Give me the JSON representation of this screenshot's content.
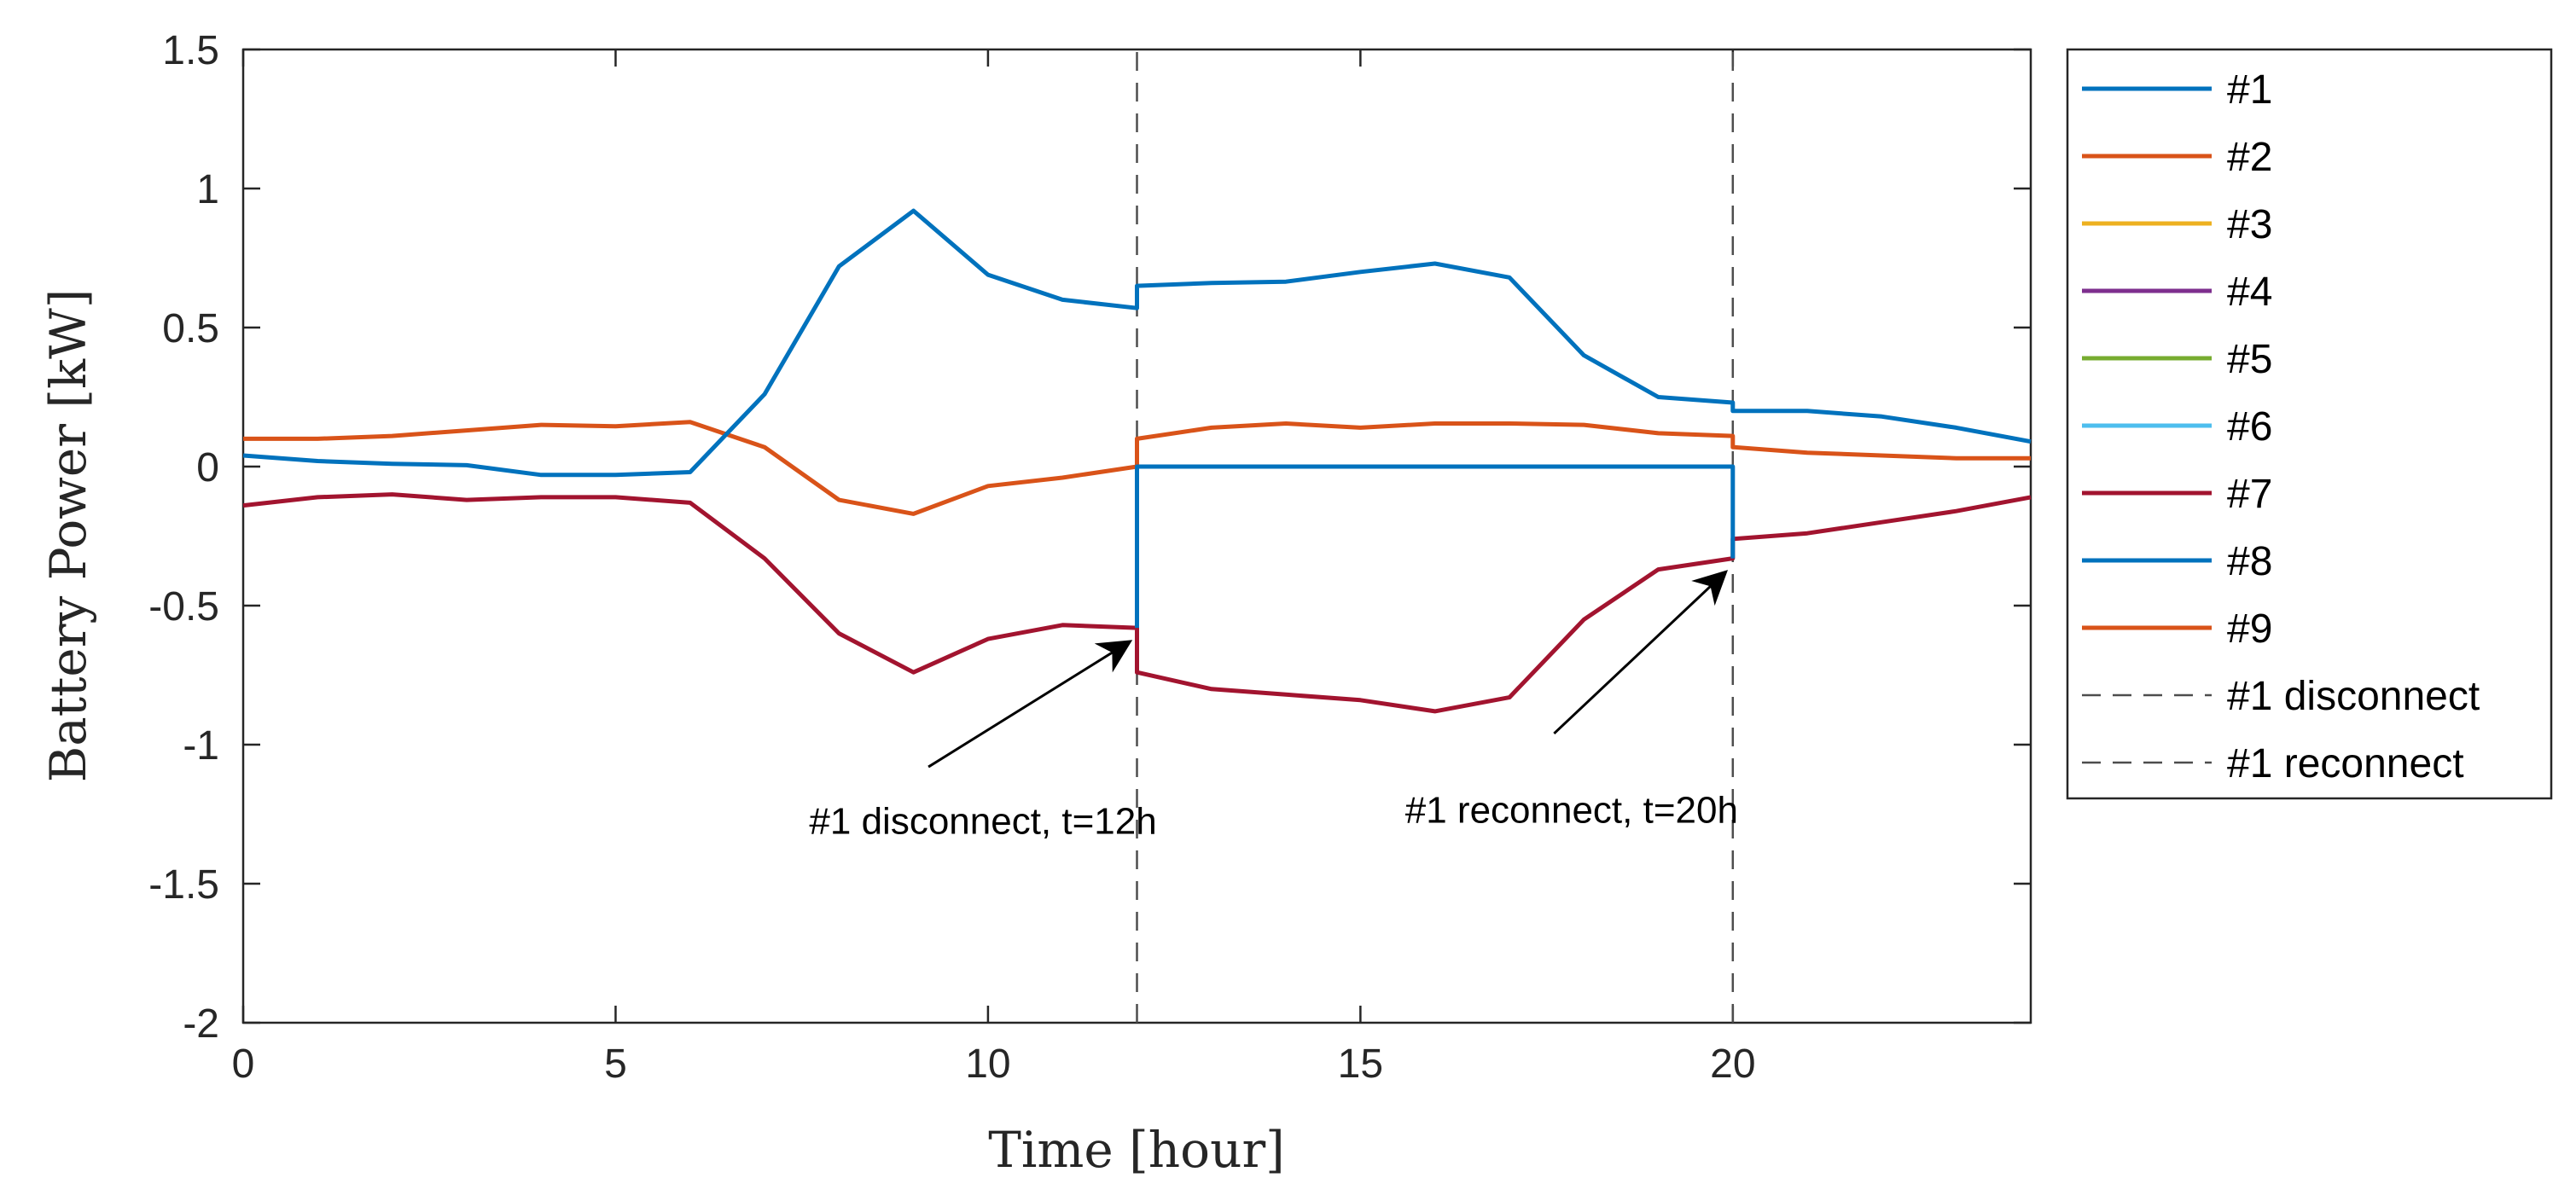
{
  "chart_data": {
    "type": "line",
    "title": "",
    "xlabel": "Time [hour]",
    "ylabel": "Battery Power [kW]",
    "xlim": [
      0,
      24
    ],
    "ylim": [
      -2,
      1.5
    ],
    "xticks": [
      0,
      5,
      10,
      15,
      20
    ],
    "yticks": [
      1.5,
      1,
      0.5,
      0,
      -0.5,
      -1,
      -1.5,
      -2
    ],
    "xtick_labels": [
      "0",
      "5",
      "10",
      "15",
      "20"
    ],
    "ytick_labels": [
      "1.5",
      "1",
      "0.5",
      "0",
      "-0.5",
      "-1",
      "-1.5",
      "-2"
    ],
    "grid": false,
    "legend_position": "outside-right",
    "series": [
      {
        "name": "#1",
        "color": "#0072BD",
        "style": "solid",
        "x": [
          0,
          1,
          2,
          3,
          4,
          5,
          6,
          7,
          8,
          9,
          10,
          11,
          12,
          12,
          13,
          14,
          15,
          16,
          17,
          18,
          19,
          20,
          20,
          21,
          22,
          23,
          24
        ],
        "y": [
          0.04,
          0.02,
          0.01,
          0.005,
          -0.03,
          -0.03,
          -0.02,
          0.26,
          0.72,
          0.92,
          0.69,
          0.6,
          0.57,
          0.65,
          0.66,
          0.665,
          0.7,
          0.73,
          0.68,
          0.4,
          0.25,
          0.23,
          0.2,
          0.2,
          0.18,
          0.14,
          0.09
        ]
      },
      {
        "name": "#2",
        "color": "#D95319",
        "style": "solid",
        "x": [
          0,
          1,
          2,
          3,
          4,
          5,
          6,
          7,
          8,
          9,
          10,
          11,
          12,
          12,
          13,
          14,
          15,
          16,
          17,
          18,
          19,
          20,
          20,
          21,
          22,
          23,
          24
        ],
        "y": [
          0.1,
          0.1,
          0.11,
          0.13,
          0.15,
          0.145,
          0.16,
          0.07,
          -0.12,
          -0.17,
          -0.07,
          -0.04,
          0.0,
          0.1,
          0.14,
          0.155,
          0.14,
          0.155,
          0.155,
          0.15,
          0.12,
          0.11,
          0.07,
          0.05,
          0.04,
          0.03,
          0.03
        ]
      },
      {
        "name": "#3",
        "color": "#EDB120",
        "style": "solid",
        "x": [],
        "y": []
      },
      {
        "name": "#4",
        "color": "#7E2F8E",
        "style": "solid",
        "x": [],
        "y": []
      },
      {
        "name": "#5",
        "color": "#77AC30",
        "style": "solid",
        "x": [],
        "y": []
      },
      {
        "name": "#6",
        "color": "#4DBEEE",
        "style": "solid",
        "x": [],
        "y": []
      },
      {
        "name": "#7",
        "color": "#A2142F",
        "style": "solid",
        "x": [
          0,
          1,
          2,
          3,
          4,
          5,
          6,
          7,
          8,
          9,
          10,
          11,
          12,
          12,
          13,
          14,
          15,
          16,
          17,
          18,
          19,
          20,
          20,
          21,
          22,
          23,
          24
        ],
        "y": [
          -0.14,
          -0.11,
          -0.1,
          -0.12,
          -0.11,
          -0.11,
          -0.13,
          -0.33,
          -0.6,
          -0.74,
          -0.62,
          -0.57,
          -0.58,
          -0.74,
          -0.8,
          -0.82,
          -0.84,
          -0.88,
          -0.83,
          -0.55,
          -0.37,
          -0.33,
          -0.26,
          -0.24,
          -0.2,
          -0.16,
          -0.11
        ]
      },
      {
        "name": "#8",
        "color": "#0072BD",
        "style": "solid",
        "x": [
          12,
          12,
          20,
          20
        ],
        "y": [
          -0.58,
          0,
          0,
          -0.33
        ]
      },
      {
        "name": "#9",
        "color": "#D95319",
        "style": "solid",
        "x": [],
        "y": []
      },
      {
        "name": "#1 disconnect",
        "color": "#4d4d4d",
        "style": "dashed",
        "x": [
          12,
          12
        ],
        "y": [
          -2,
          1.5
        ]
      },
      {
        "name": "#1 reconnect",
        "color": "#4d4d4d",
        "style": "dashed",
        "x": [
          20,
          20
        ],
        "y": [
          -2,
          1.5
        ]
      }
    ],
    "annotations": [
      {
        "text": "#1 disconnect, t=12h",
        "text_at": [
          7.6,
          -1.32
        ],
        "arrow_from": [
          9.2,
          -1.08
        ],
        "arrow_to": [
          11.9,
          -0.63
        ]
      },
      {
        "text": "#1 reconnect, t=20h",
        "text_at": [
          15.6,
          -1.28
        ],
        "arrow_from": [
          17.6,
          -0.96
        ],
        "arrow_to": [
          19.9,
          -0.38
        ]
      }
    ]
  }
}
